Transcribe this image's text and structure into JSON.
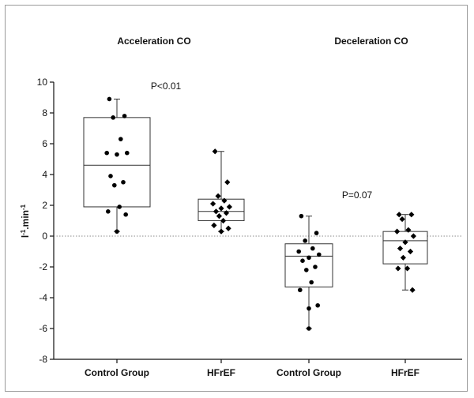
{
  "chart_data": {
    "type": "box",
    "group_titles": [
      "Acceleration CO",
      "Deceleration CO"
    ],
    "ylabel": "l-1.min-1",
    "ylabel_parts": {
      "base1": "l",
      "sup1": "-1",
      "base2": ".min",
      "sup2": "-1"
    },
    "ylim": [
      -8,
      10
    ],
    "yticks": [
      10,
      8,
      6,
      4,
      2,
      0,
      -2,
      -4,
      -6,
      -8
    ],
    "reference_line": 0,
    "categories": [
      "Control Group",
      "HFrEF",
      "Control Group",
      "HFrEF"
    ],
    "annotations": [
      {
        "text": "P<0.01",
        "x": 0,
        "y": 9.9
      },
      {
        "text": "P=0.07",
        "x": 2,
        "y": 2.6
      }
    ],
    "series": [
      {
        "group": "Acceleration CO",
        "category": "Control Group",
        "min": 0.3,
        "q1": 1.9,
        "median": 4.6,
        "q3": 7.7,
        "max": 8.9,
        "points": [
          8.9,
          7.8,
          7.7,
          6.3,
          5.4,
          5.4,
          5.3,
          3.9,
          3.5,
          3.3,
          1.9,
          1.6,
          1.4,
          0.3
        ]
      },
      {
        "group": "Acceleration CO",
        "category": "HFrEF",
        "min": 0.3,
        "q1": 1.0,
        "median": 1.6,
        "q3": 2.4,
        "max": 5.5,
        "points": [
          5.5,
          3.5,
          2.6,
          2.3,
          2.1,
          1.9,
          1.8,
          1.6,
          1.5,
          1.3,
          1.0,
          0.7,
          0.5,
          0.3
        ]
      },
      {
        "group": "Deceleration CO",
        "category": "Control Group",
        "min": -6.0,
        "q1": -3.3,
        "median": -1.3,
        "q3": -0.5,
        "max": 1.3,
        "points": [
          1.3,
          0.2,
          -0.3,
          -0.8,
          -1.0,
          -1.2,
          -1.4,
          -1.6,
          -2.0,
          -2.2,
          -3.0,
          -3.5,
          -4.5,
          -4.7,
          -6.0
        ]
      },
      {
        "group": "Deceleration CO",
        "category": "HFrEF",
        "min": -3.5,
        "q1": -1.8,
        "median": -0.3,
        "q3": 0.3,
        "max": 1.4,
        "points": [
          1.4,
          1.4,
          1.1,
          0.4,
          0.3,
          0.0,
          -0.4,
          -0.8,
          -1.0,
          -1.4,
          -2.1,
          -2.1,
          -3.5
        ]
      }
    ],
    "grid": false,
    "legend": "none",
    "colors": {
      "box": "#333333",
      "point": "#000000",
      "reference_line": "#8a8a8a"
    }
  }
}
